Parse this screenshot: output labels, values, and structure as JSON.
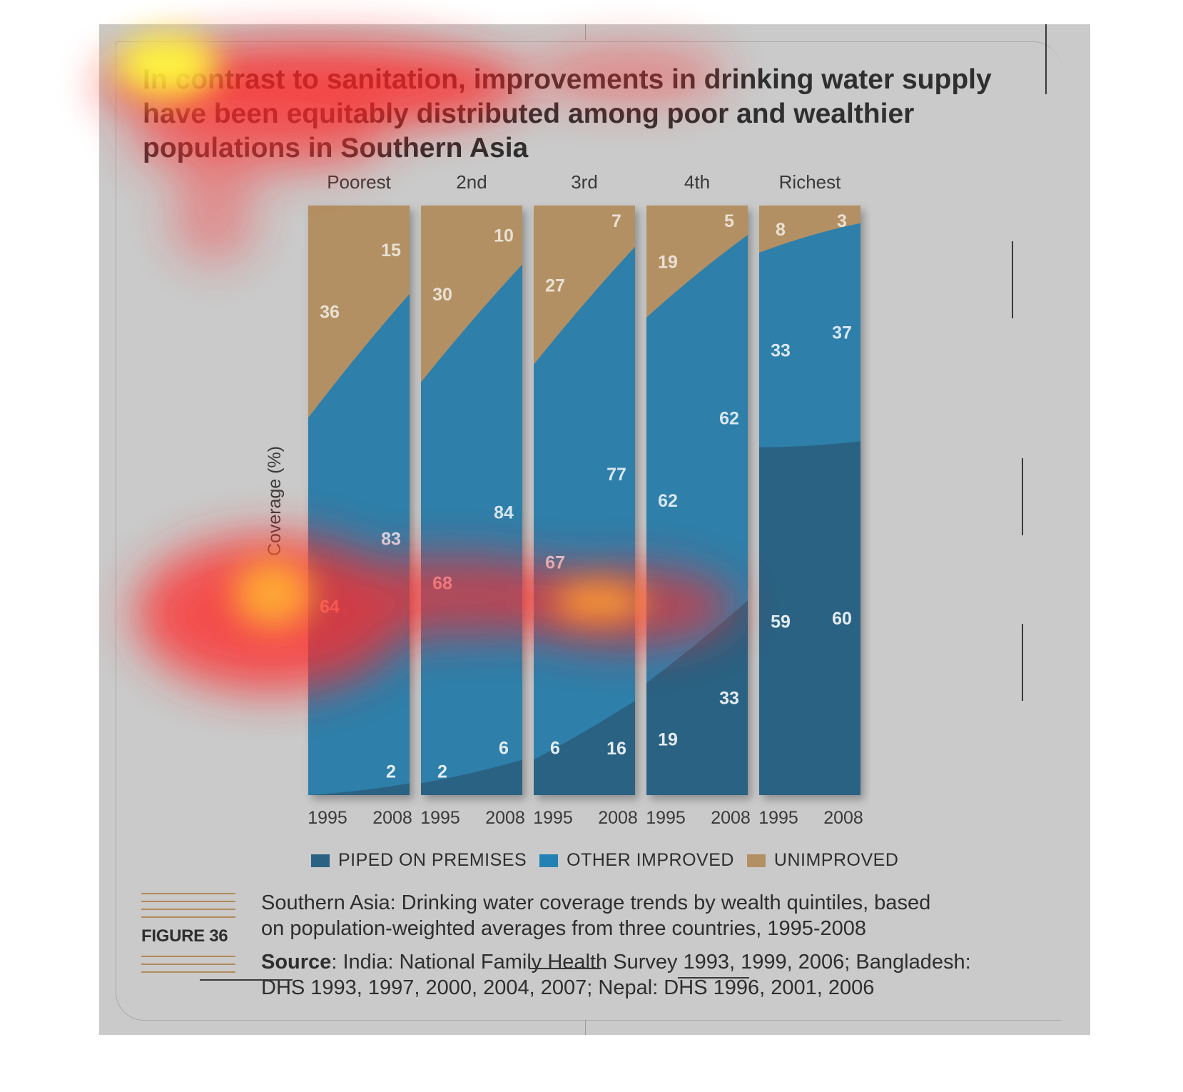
{
  "title": {
    "line1": "In contrast to sanitation, improvements in drinking water supply",
    "line2": "have been equitably distributed among poor and wealthier",
    "line3": "populations in Southern Asia"
  },
  "chart_data": {
    "type": "area",
    "subtype": "stacked-100-percent-panels",
    "ylabel": "Coverage (%)",
    "ylim": [
      0,
      100
    ],
    "panels": [
      {
        "name": "Poorest",
        "x": [
          "1995",
          "2008"
        ],
        "piped": [
          0,
          2
        ],
        "other_improved": [
          64,
          83
        ],
        "unimproved": [
          36,
          15
        ],
        "labels": {
          "unimproved": [
            "36",
            "15"
          ],
          "other_improved": [
            "64",
            "83"
          ],
          "piped": [
            "",
            "2"
          ]
        }
      },
      {
        "name": "2nd",
        "x": [
          "1995",
          "2008"
        ],
        "piped": [
          2,
          6
        ],
        "other_improved": [
          68,
          84
        ],
        "unimproved": [
          30,
          10
        ],
        "labels": {
          "unimproved": [
            "30",
            "10"
          ],
          "other_improved": [
            "68",
            "84"
          ],
          "piped": [
            "2",
            "6"
          ]
        }
      },
      {
        "name": "3rd",
        "x": [
          "1995",
          "2008"
        ],
        "piped": [
          6,
          16
        ],
        "other_improved": [
          67,
          77
        ],
        "unimproved": [
          27,
          7
        ],
        "labels": {
          "unimproved": [
            "27",
            "7"
          ],
          "other_improved": [
            "67",
            "77"
          ],
          "piped": [
            "6",
            "16"
          ]
        }
      },
      {
        "name": "4th",
        "x": [
          "1995",
          "2008"
        ],
        "piped": [
          19,
          33
        ],
        "other_improved": [
          62,
          62
        ],
        "unimproved": [
          19,
          5
        ],
        "labels": {
          "unimproved": [
            "19",
            "5"
          ],
          "other_improved": [
            "62",
            "62"
          ],
          "piped": [
            "19",
            "33"
          ]
        }
      },
      {
        "name": "Richest",
        "x": [
          "1995",
          "2008"
        ],
        "piped": [
          59,
          60
        ],
        "other_improved": [
          33,
          37
        ],
        "unimproved": [
          8,
          3
        ],
        "labels": {
          "unimproved": [
            "8",
            "3"
          ],
          "other_improved": [
            "33",
            "37"
          ],
          "piped": [
            "59",
            "60"
          ]
        }
      }
    ],
    "legend": [
      "PIPED ON PREMISES",
      "OTHER IMPROVED",
      "UNIMPROVED"
    ],
    "colors": {
      "piped": "#2a6283",
      "other_improved": "#2e7faa",
      "unimproved": "#b39063"
    }
  },
  "legend": {
    "piped": "PIPED ON PREMISES",
    "other": "OTHER IMPROVED",
    "unimproved": "UNIMPROVED"
  },
  "figure": {
    "label": "FIGURE 36",
    "caption_line1": "Southern Asia: Drinking water coverage trends by wealth quintiles, based",
    "caption_line2": "on population-weighted averages from three countries, 1995-2008",
    "source_bold": "Source",
    "source_line1_rest": ": India: National Family Health Survey 1993, 1999, 2006; Bangladesh:",
    "source_line2": "DHS 1993, 1997, 2000, 2004, 2007; Nepal: DHS 1996, 2001, 2006"
  }
}
